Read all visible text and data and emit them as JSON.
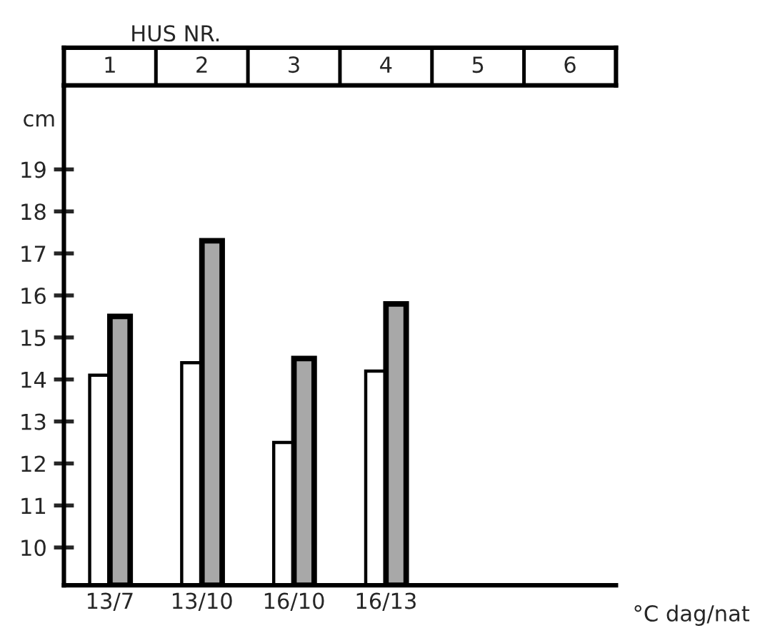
{
  "chart_data": {
    "type": "bar",
    "categories": [
      "13/7",
      "13/10",
      "16/10",
      "16/13",
      null,
      null
    ],
    "series": [
      {
        "color": "#ffffff",
        "values": [
          14.1,
          14.4,
          12.5,
          14.2,
          null,
          null
        ]
      },
      {
        "color": "#a8a8a8",
        "values": [
          15.5,
          17.3,
          14.5,
          15.8,
          null,
          null
        ]
      }
    ],
    "ylabel": "cm",
    "xlabel": "°C dag/nat",
    "annotations": [
      "HUS NR.",
      "1",
      "2",
      "3",
      "4",
      "5",
      "6"
    ],
    "ylim": [
      9.1,
      21
    ],
    "yticks": [
      10,
      11,
      12,
      13,
      14,
      15,
      16,
      17,
      18,
      19
    ],
    "grid": false,
    "legend": false
  }
}
